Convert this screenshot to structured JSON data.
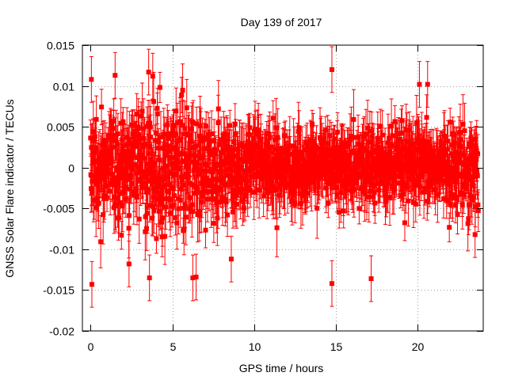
{
  "chart_data": {
    "type": "scatter",
    "title": "Day 139 of 2017",
    "xlabel": "GPS time / hours",
    "ylabel": "GNSS Solar Flare indicator / TECUs",
    "xlim": [
      -0.5,
      24
    ],
    "ylim": [
      -0.02,
      0.015
    ],
    "x_ticks": [
      0,
      5,
      10,
      15,
      20
    ],
    "x_tick_labels": [
      "0",
      "5",
      "10",
      "15",
      "20"
    ],
    "y_ticks": [
      -0.02,
      -0.015,
      -0.01,
      -0.005,
      0,
      0.005,
      0.01,
      0.015
    ],
    "y_tick_labels": [
      "-0.02",
      "-0.015",
      "-0.01",
      "-0.005",
      "0",
      "0.005",
      "0.01",
      "0.015"
    ],
    "grid": true,
    "series_color": "#ff0000",
    "marker": "square",
    "error_bars": true,
    "approx_point_spacing_hours": 0.0167,
    "point_spread_profile": [
      {
        "x": 0.0,
        "spread": 0.0045
      },
      {
        "x": 1.0,
        "spread": 0.0052
      },
      {
        "x": 3.0,
        "spread": 0.0055
      },
      {
        "x": 5.0,
        "spread": 0.0058
      },
      {
        "x": 7.0,
        "spread": 0.0052
      },
      {
        "x": 9.0,
        "spread": 0.0042
      },
      {
        "x": 11.0,
        "spread": 0.0033
      },
      {
        "x": 13.0,
        "spread": 0.003
      },
      {
        "x": 15.0,
        "spread": 0.0036
      },
      {
        "x": 17.0,
        "spread": 0.004
      },
      {
        "x": 19.0,
        "spread": 0.0037
      },
      {
        "x": 21.0,
        "spread": 0.003
      },
      {
        "x": 23.0,
        "spread": 0.0042
      },
      {
        "x": 23.7,
        "spread": 0.0045
      }
    ],
    "notable_points": [
      {
        "x": 0.05,
        "y": 0.0108
      },
      {
        "x": 0.08,
        "y": -0.0143
      },
      {
        "x": 1.5,
        "y": 0.0113
      },
      {
        "x": 3.55,
        "y": 0.0117
      },
      {
        "x": 3.8,
        "y": 0.0112
      },
      {
        "x": 2.35,
        "y": -0.0118
      },
      {
        "x": 3.6,
        "y": -0.0135
      },
      {
        "x": 6.25,
        "y": -0.0135
      },
      {
        "x": 6.45,
        "y": -0.0134
      },
      {
        "x": 8.6,
        "y": -0.0112
      },
      {
        "x": 14.75,
        "y": 0.012
      },
      {
        "x": 14.75,
        "y": -0.0142
      },
      {
        "x": 17.15,
        "y": -0.0136
      },
      {
        "x": 20.1,
        "y": 0.0102
      },
      {
        "x": 20.6,
        "y": 0.0102
      },
      {
        "x": 23.5,
        "y": -0.0082
      }
    ]
  }
}
